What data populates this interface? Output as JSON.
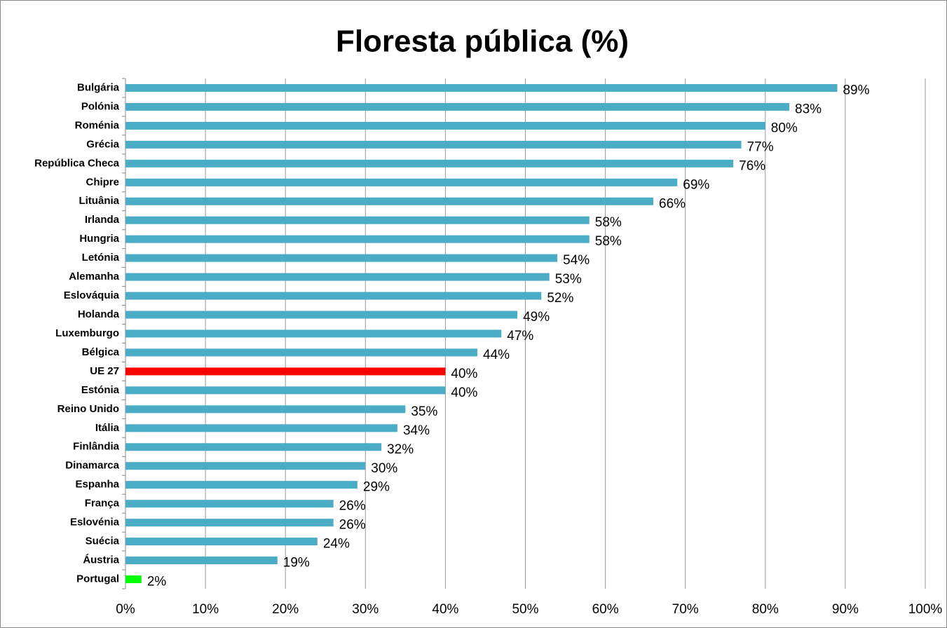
{
  "chart_data": {
    "type": "barh",
    "title": "Floresta pública (%)",
    "categories": [
      "Bulgária",
      "Polónia",
      "Roménia",
      "Grécia",
      "República Checa",
      "Chipre",
      "Lituânia",
      "Irlanda",
      "Hungria",
      "Letónia",
      "Alemanha",
      "Eslováquia",
      "Holanda",
      "Luxemburgo",
      "Bélgica",
      "UE 27",
      "Estónia",
      "Reino Unido",
      "Itália",
      "Finlândia",
      "Dinamarca",
      "Espanha",
      "França",
      "Eslovénia",
      "Suécia",
      "Áustria",
      "Portugal"
    ],
    "values": [
      89,
      83,
      80,
      77,
      76,
      69,
      66,
      58,
      58,
      54,
      53,
      52,
      49,
      47,
      44,
      40,
      40,
      35,
      34,
      32,
      30,
      29,
      26,
      26,
      24,
      19,
      2
    ],
    "value_labels": [
      "89%",
      "83%",
      "80%",
      "77%",
      "76%",
      "69%",
      "66%",
      "58%",
      "58%",
      "54%",
      "53%",
      "52%",
      "49%",
      "47%",
      "44%",
      "40%",
      "40%",
      "35%",
      "34%",
      "32%",
      "30%",
      "29%",
      "26%",
      "26%",
      "24%",
      "19%",
      "2%"
    ],
    "colors": [
      "#4bacc6",
      "#4bacc6",
      "#4bacc6",
      "#4bacc6",
      "#4bacc6",
      "#4bacc6",
      "#4bacc6",
      "#4bacc6",
      "#4bacc6",
      "#4bacc6",
      "#4bacc6",
      "#4bacc6",
      "#4bacc6",
      "#4bacc6",
      "#4bacc6",
      "#ff0000",
      "#4bacc6",
      "#4bacc6",
      "#4bacc6",
      "#4bacc6",
      "#4bacc6",
      "#4bacc6",
      "#4bacc6",
      "#4bacc6",
      "#4bacc6",
      "#4bacc6",
      "#00ff00"
    ],
    "xlim": [
      0,
      100
    ],
    "xticks": [
      {
        "value": 0,
        "label": "0%"
      },
      {
        "value": 10,
        "label": "10%"
      },
      {
        "value": 20,
        "label": "20%"
      },
      {
        "value": 30,
        "label": "30%"
      },
      {
        "value": 40,
        "label": "40%"
      },
      {
        "value": 50,
        "label": "50%"
      },
      {
        "value": 60,
        "label": "60%"
      },
      {
        "value": 70,
        "label": "70%"
      },
      {
        "value": 80,
        "label": "80%"
      },
      {
        "value": 90,
        "label": "90%"
      },
      {
        "value": 100,
        "label": "100%"
      }
    ],
    "grid": true
  }
}
